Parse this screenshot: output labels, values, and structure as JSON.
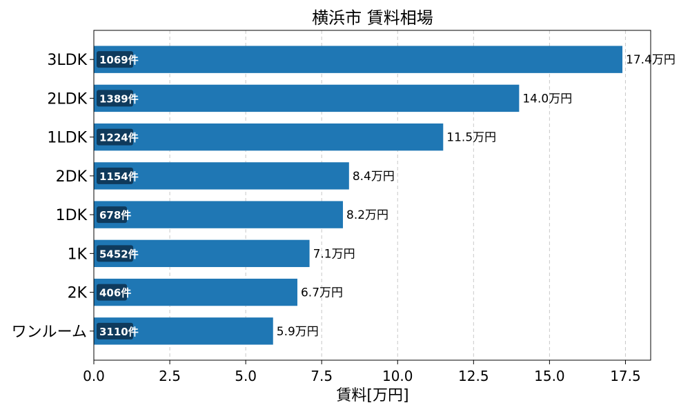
{
  "chart_data": {
    "type": "bar",
    "orientation": "horizontal",
    "title": "横浜市 賃料相場",
    "xlabel": "賃料[万円]",
    "ylabel": "",
    "xlim": [
      0,
      18.33
    ],
    "xticks": [
      "0.0",
      "2.5",
      "5.0",
      "7.5",
      "10.0",
      "12.5",
      "15.0",
      "17.5"
    ],
    "xtick_values": [
      0,
      2.5,
      5,
      7.5,
      10,
      12.5,
      15,
      17.5
    ],
    "grid": "x-dashed",
    "categories": [
      "3LDK",
      "2LDK",
      "1LDK",
      "2DK",
      "1DK",
      "1K",
      "2K",
      "ワンルーム"
    ],
    "values": [
      17.4,
      14.0,
      11.5,
      8.4,
      8.2,
      7.1,
      6.7,
      5.9
    ],
    "value_labels": [
      "17.4万円",
      "14.0万円",
      "11.5万円",
      "8.4万円",
      "8.2万円",
      "7.1万円",
      "6.7万円",
      "5.9万円"
    ],
    "count_labels": [
      "1069件",
      "1389件",
      "1224件",
      "1154件",
      "678件",
      "5452件",
      "406件",
      "3110件"
    ],
    "bar_color": "#1f77b4",
    "badge_color": "#0f3a5c"
  }
}
